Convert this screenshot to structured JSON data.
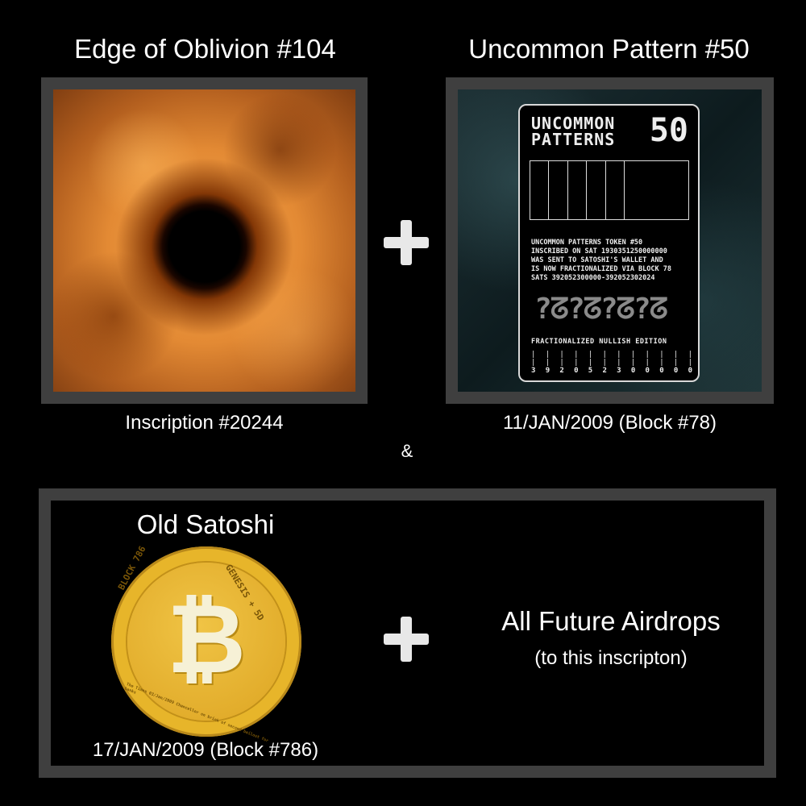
{
  "top_left": {
    "title": "Edge of Oblivion #104",
    "caption": "Inscription #20244"
  },
  "top_right": {
    "title": "Uncommon Pattern #50",
    "caption": "11/JAN/2009 (Block #78)",
    "card": {
      "title": "UNCOMMON PATTERNS",
      "number": "50",
      "description": "UNCOMMON PATTERNS TOKEN #50\nINSCRIBED ON SAT 1930351250000000\nWAS SENT TO SATOSHI'S WALLET AND\nIS NOW FRACTIONALIZED VIA BLOCK 78\nSATS 392052300000-392052302024",
      "glyphs": "?ᘔ?ᘔ?ᘔ?ᘔ",
      "edition": "FRACTIONALIZED NULLISH EDITION",
      "digits": [
        "3",
        "9",
        "2",
        "0",
        "5",
        "2",
        "3",
        "0",
        "0",
        "0",
        "0",
        "0"
      ]
    }
  },
  "ampersand": "&",
  "bottom": {
    "title": "Old Satoshi",
    "caption": "17/JAN/2009 (Block #786)",
    "coin": {
      "left_text": "BLOCK 786",
      "right_text": "GENESIS + 5D",
      "bottom_text": "The Times 03/Jan/2009 Chancellor on brink of second bailout for banks",
      "symbol": "₿"
    },
    "airdrops_title": "All Future Airdrops",
    "airdrops_sub": "(to this inscripton)"
  },
  "colors": {
    "background": "#000000",
    "frame": "#3f3f3f",
    "coin_gold": "#e7b52a"
  },
  "icons": [
    "plus-icon",
    "bitcoin-icon"
  ]
}
